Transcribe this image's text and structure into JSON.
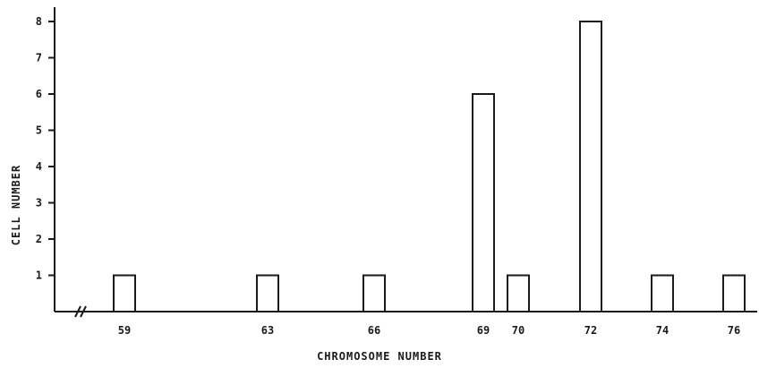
{
  "chart_data": {
    "type": "bar",
    "xlabel": "CHROMOSOME NUMBER",
    "ylabel": "CELL NUMBER",
    "ylim": [
      0,
      8.4
    ],
    "yticks": [
      1,
      2,
      3,
      4,
      5,
      6,
      7,
      8
    ],
    "x_axis_break": true,
    "grid": false,
    "categories": [
      "59",
      "63",
      "66",
      "69",
      "70",
      "72",
      "74",
      "76"
    ],
    "x": [
      59,
      63,
      66,
      69,
      70,
      72,
      74,
      76
    ],
    "values": [
      1,
      1,
      1,
      6,
      1,
      8,
      1,
      1
    ]
  }
}
